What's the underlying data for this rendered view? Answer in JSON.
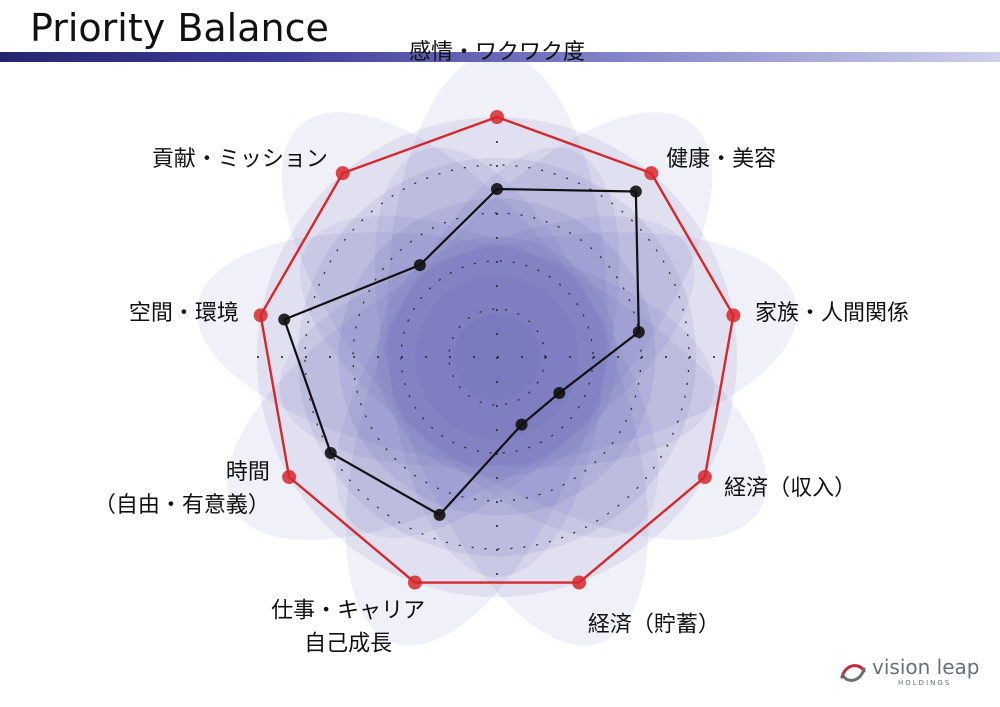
{
  "header": {
    "title": "Priority Balance"
  },
  "chart_data": {
    "type": "radar",
    "axes": [
      [
        "感情・ワクワク度"
      ],
      [
        "健康・美容"
      ],
      [
        "家族・人間関係"
      ],
      [
        "経済（収入）"
      ],
      [
        "経済（貯蓄）"
      ],
      [
        "仕事・キャリア",
        "自己成長"
      ],
      [
        "時間",
        "（自由・有意義）"
      ],
      [
        "空間・環境"
      ],
      [
        "貢献・ミッション"
      ]
    ],
    "rmax": 10,
    "rings": [
      2,
      4,
      6,
      8
    ],
    "series": [
      {
        "values": [
          10,
          10,
          10,
          10,
          10,
          10,
          10,
          10,
          10
        ],
        "color": "#d6282c"
      },
      {
        "values": [
          7,
          9,
          6,
          3,
          3,
          7,
          8,
          9,
          5
        ],
        "color": "#111111"
      }
    ]
  },
  "logo": {
    "brand": "vision leap",
    "sub": "HOLDINGS"
  },
  "colors": {
    "title_bar": "#3c3c99",
    "fill": "#5c5cb5"
  }
}
